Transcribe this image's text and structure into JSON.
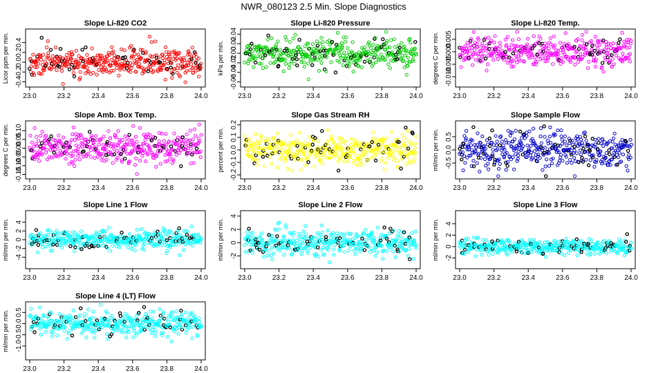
{
  "figure_title": "NWR_080123  2.5 Min. Slope Diagnostics",
  "chart_data": [
    {
      "type": "scatter",
      "title": "Slope Li-820 CO2",
      "ylabel": "Licor ppm per min.",
      "xlim": [
        23.0,
        24.0
      ],
      "ylim": [
        -0.45,
        0.62
      ],
      "yticks": [
        -0.4,
        -0.2,
        0.0,
        0.2,
        0.4
      ],
      "ytick_labels": [
        "-0.4",
        "-0.2",
        "0.0",
        "0.2",
        "0.4"
      ],
      "xticks": [
        "23.0",
        "23.2",
        "23.4",
        "23.6",
        "23.8",
        "24.0"
      ],
      "color": "#ff0000",
      "spread": 0.14,
      "n": 420,
      "seed": 11
    },
    {
      "type": "scatter",
      "title": "Slope Li-820 Pressure",
      "ylabel": "kPa per min.",
      "xlim": [
        23.0,
        24.0
      ],
      "ylim": [
        -0.065,
        0.045
      ],
      "yticks": [
        -0.06,
        -0.04,
        -0.02,
        0.0,
        0.02,
        0.04
      ],
      "ytick_labels": [
        "-0.06",
        "-0.04",
        "-0.02",
        "0.00",
        "0.02",
        "0.04"
      ],
      "xticks": [
        "23.0",
        "23.2",
        "23.4",
        "23.6",
        "23.8",
        "24.0"
      ],
      "color": "#00cc00",
      "spread": 0.015,
      "n": 420,
      "seed": 23
    },
    {
      "type": "scatter",
      "title": "Slope Li-820 Temp.",
      "ylabel": "degrees C per min.",
      "xlim": [
        23.0,
        24.0
      ],
      "ylim": [
        -0.013,
        0.008
      ],
      "yticks": [
        -0.01,
        -0.005,
        0.0,
        0.005
      ],
      "ytick_labels": [
        "-0.010",
        "-0.005",
        "0.000",
        "0.005"
      ],
      "xticks": [
        "23.0",
        "23.2",
        "23.4",
        "23.6",
        "23.8",
        "24.0"
      ],
      "color": "#ff00ff",
      "spread": 0.003,
      "n": 420,
      "seed": 37
    },
    {
      "type": "scatter",
      "title": "Slope Amb. Box Temp.",
      "ylabel": "degrees C per min.",
      "xlim": [
        23.0,
        24.0
      ],
      "ylim": [
        -0.16,
        0.14
      ],
      "yticks": [
        -0.15,
        -0.1,
        -0.05,
        0.0,
        0.05,
        0.1
      ],
      "ytick_labels": [
        "-0.15",
        "-0.10",
        "-0.05",
        "0.00",
        "0.05",
        "0.10"
      ],
      "xticks": [
        "23.0",
        "23.2",
        "23.4",
        "23.6",
        "23.8",
        "24.0"
      ],
      "color": "#ff00ff",
      "spread": 0.045,
      "n": 420,
      "seed": 41
    },
    {
      "type": "scatter",
      "title": "Slope Gas Stream RH",
      "ylabel": "percent per min.",
      "xlim": [
        23.0,
        24.0
      ],
      "ylim": [
        -0.21,
        0.21
      ],
      "yticks": [
        -0.2,
        -0.1,
        0.0,
        0.1,
        0.2
      ],
      "ytick_labels": [
        "-0.2",
        "-0.1",
        "0.0",
        "0.1",
        "0.2"
      ],
      "xticks": [
        "23.0",
        "23.2",
        "23.4",
        "23.6",
        "23.8",
        "24.0"
      ],
      "color": "#ffff00",
      "spread": 0.065,
      "n": 420,
      "seed": 53
    },
    {
      "type": "scatter",
      "title": "Slope Sample Flow",
      "ylabel": "ml/min per min.",
      "xlim": [
        23.0,
        24.0
      ],
      "ylim": [
        -1.0,
        1.0
      ],
      "yticks": [
        -0.5,
        0.0,
        0.5
      ],
      "ytick_labels": [
        "-0.5",
        "0.0",
        "0.5"
      ],
      "xticks": [
        "23.0",
        "23.2",
        "23.4",
        "23.6",
        "23.8",
        "24.0"
      ],
      "color": "#0000cc",
      "spread": 0.32,
      "n": 420,
      "seed": 67
    },
    {
      "type": "scatter",
      "title": "Slope Line 1 Flow",
      "ylabel": "ml/min per min.",
      "xlim": [
        23.0,
        24.0
      ],
      "ylim": [
        -6,
        6
      ],
      "yticks": [
        -4,
        -2,
        0,
        2,
        4
      ],
      "ytick_labels": [
        "-4",
        "-2",
        "0",
        "2",
        "4"
      ],
      "xticks": [
        "23.0",
        "23.2",
        "23.4",
        "23.6",
        "23.8",
        "24.0"
      ],
      "color": "#00ffff",
      "spread": 1.0,
      "n": 420,
      "seed": 71
    },
    {
      "type": "scatter",
      "title": "Slope Line 2 Flow",
      "ylabel": "ml/min per min.",
      "xlim": [
        23.0,
        24.0
      ],
      "ylim": [
        -3.5,
        4.4
      ],
      "yticks": [
        -2,
        0,
        2,
        4
      ],
      "ytick_labels": [
        "-2",
        "0",
        "2",
        "4"
      ],
      "xticks": [
        "23.0",
        "23.2",
        "23.4",
        "23.6",
        "23.8",
        "24.0"
      ],
      "color": "#00ffff",
      "spread": 1.0,
      "n": 420,
      "seed": 83
    },
    {
      "type": "scatter",
      "title": "Slope Line 3 Flow",
      "ylabel": "ml/min per min.",
      "xlim": [
        23.0,
        24.0
      ],
      "ylim": [
        -3.4,
        5.8
      ],
      "yticks": [
        -2,
        0,
        2,
        4
      ],
      "ytick_labels": [
        "-2",
        "0",
        "2",
        "4"
      ],
      "xticks": [
        "23.0",
        "23.2",
        "23.4",
        "23.6",
        "23.8",
        "24.0"
      ],
      "color": "#00ffff",
      "spread": 0.7,
      "n": 420,
      "seed": 97
    },
    {
      "type": "scatter",
      "title": "Slope Line 4 (LT) Flow",
      "ylabel": "ml/min per min.",
      "xlim": [
        23.0,
        24.0
      ],
      "ylim": [
        -1.5,
        0.85
      ],
      "yticks": [
        -1.0,
        -0.5,
        0.0,
        0.5
      ],
      "ytick_labels": [
        "-1.0",
        "-0.5",
        "0.0",
        "0.5"
      ],
      "xticks": [
        "23.0",
        "23.2",
        "23.4",
        "23.6",
        "23.8",
        "24.0"
      ],
      "color": "#00ffff",
      "spread": 0.26,
      "n": 420,
      "seed": 101
    }
  ]
}
